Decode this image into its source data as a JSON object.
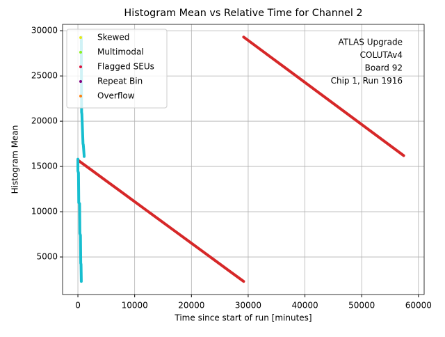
{
  "chart_data": {
    "type": "scatter",
    "title": "Histogram Mean vs Relative Time for Channel 2",
    "x_label": "Time since start of run [minutes]",
    "y_label": "Histogram Mean",
    "annotation": [
      "ATLAS Upgrade",
      "COLUTAv4",
      "Board 92",
      "Chip 1, Run 1916"
    ],
    "xlim": [
      -2700,
      61000
    ],
    "ylim": [
      850,
      30700
    ],
    "xticks": [
      0,
      10000,
      20000,
      30000,
      40000,
      50000,
      60000
    ],
    "yticks": [
      5000,
      10000,
      15000,
      20000,
      25000,
      30000
    ],
    "grid": true,
    "legend": "upper left",
    "series": [
      {
        "name": "Skewed",
        "color": "#e8e81a",
        "x": [],
        "values": []
      },
      {
        "name": "Multimodal",
        "color": "#8cf01e",
        "x": [],
        "values": []
      },
      {
        "name": "Flagged SEUs",
        "color": "#dc143c",
        "x": [],
        "values": []
      },
      {
        "name": "Repeat Bin",
        "color": "#800080",
        "x": [],
        "values": []
      },
      {
        "name": "Overflow",
        "color": "#ff7f0e",
        "x": [],
        "values": []
      },
      {
        "color": "#d62728",
        "x": [
          0,
          2400,
          4800,
          7200,
          9600,
          12000,
          14400,
          16800,
          19200,
          21600,
          24000,
          26400,
          28800,
          29200,
          null,
          29200,
          31600,
          34000,
          36400,
          38800,
          41200,
          43600,
          46000,
          48400,
          50800,
          53200,
          55600,
          57400
        ],
        "values": [
          15700,
          14599,
          13497,
          12396,
          11295,
          10193,
          9092,
          7990,
          6889,
          5788,
          4686,
          3585,
          2483,
          2300,
          null,
          29300,
          28185,
          27070,
          25956,
          24841,
          23726,
          22611,
          21497,
          20382,
          19267,
          18152,
          17036,
          16200
        ]
      },
      {
        "color": "#17becf",
        "x": [
          0,
          0,
          100,
          150,
          300,
          350,
          450,
          500,
          550,
          600,
          null,
          600,
          650,
          700,
          900,
          950,
          1100,
          1100
        ],
        "values": [
          15800,
          14500,
          14300,
          11000,
          10900,
          7600,
          7400,
          4300,
          4200,
          2300,
          null,
          29300,
          21000,
          20800,
          17500,
          17400,
          16200,
          16100
        ]
      }
    ]
  }
}
